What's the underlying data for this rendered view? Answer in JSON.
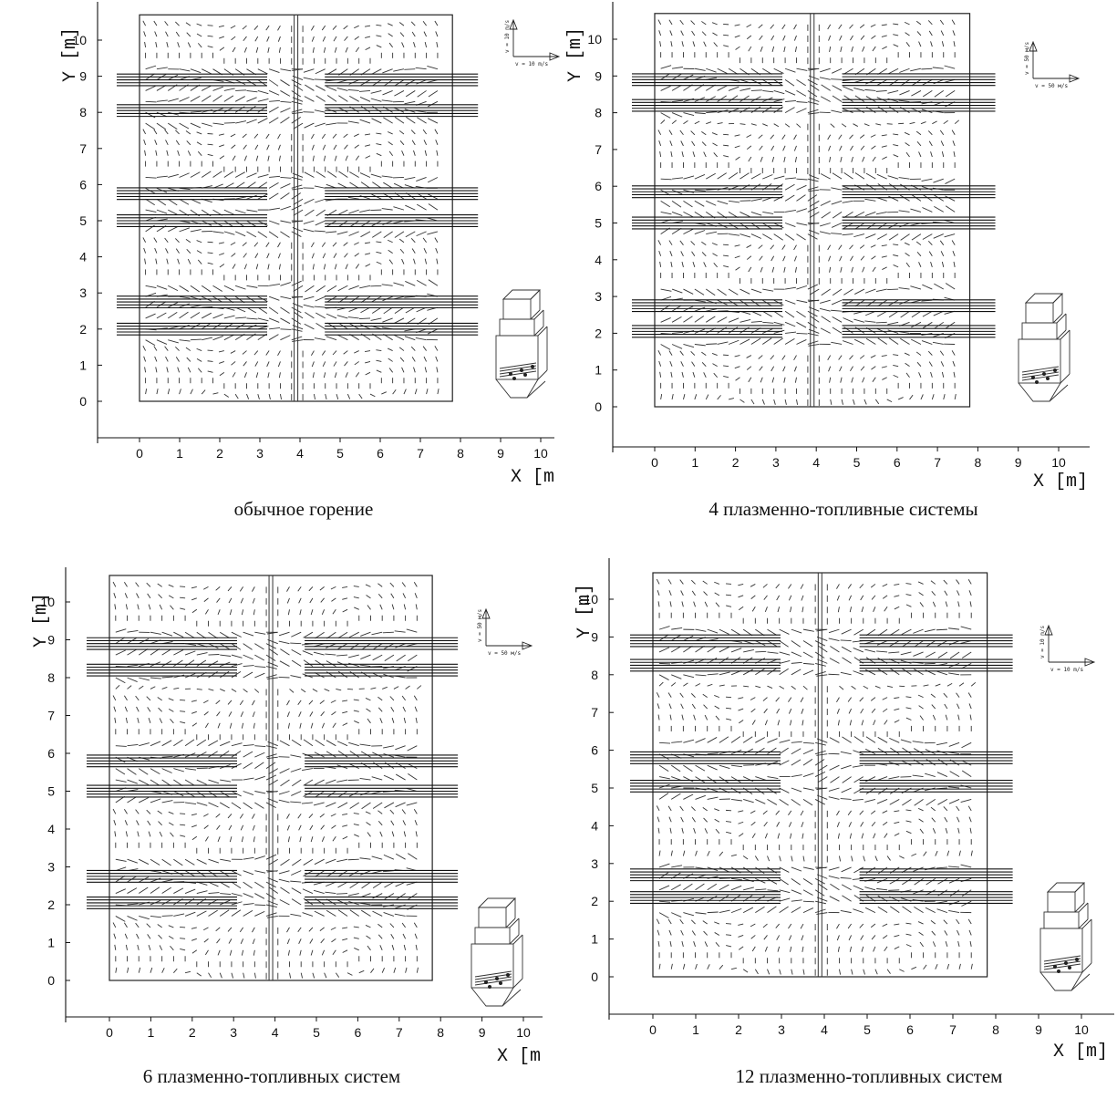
{
  "panels": [
    {
      "caption": "обычное горение",
      "xlabel": "X  [m",
      "ylabel": "Y  [m]",
      "scale_x": "v = 10 m/s",
      "scale_y": "v = 10 m/s",
      "jets_y": [
        2.0,
        2.75,
        5.0,
        5.75,
        8.05,
        8.9
      ]
    },
    {
      "caption": "4 плазменно-топливные системы",
      "xlabel": "X  [m]",
      "ylabel": "Y  [m]",
      "scale_x": "v = 50 м/s",
      "scale_y": "v = 50 м/s",
      "jets_y": [
        2.05,
        2.75,
        5.0,
        5.85,
        8.2,
        8.9
      ]
    },
    {
      "caption": "6 плазменно-топливных систем",
      "xlabel": "X  [m",
      "ylabel": "Y  [m]",
      "scale_x": "v = 50 м/s",
      "scale_y": "v = 50 м/s",
      "jets_y": [
        2.05,
        2.75,
        5.0,
        5.8,
        8.2,
        8.9
      ]
    },
    {
      "caption": "12 плазменно-топливных систем",
      "xlabel": "X  [m]",
      "ylabel": "Y  [m]",
      "scale_x": "v = 10 m/s",
      "scale_y": "v = 10 m/s",
      "jets_y": [
        2.1,
        2.7,
        5.05,
        5.8,
        8.25,
        8.9
      ]
    }
  ],
  "chart_data": [
    {
      "type": "quiver",
      "x_ticks": [
        0,
        1,
        2,
        3,
        4,
        5,
        6,
        7,
        8,
        9,
        10
      ],
      "y_ticks": [
        0,
        1,
        2,
        3,
        4,
        5,
        6,
        7,
        8,
        9,
        10
      ],
      "xlim": [
        -1,
        10.3
      ],
      "ylim": [
        -1,
        10.7
      ],
      "domain_x": [
        0,
        7.8
      ],
      "domain_y": [
        0,
        10.7
      ],
      "jet_levels_y": [
        2.0,
        2.75,
        5.0,
        5.75,
        8.05,
        8.9
      ]
    },
    {
      "type": "quiver",
      "x_ticks": [
        0,
        1,
        2,
        3,
        4,
        5,
        6,
        7,
        8,
        9,
        10
      ],
      "y_ticks": [
        0,
        1,
        2,
        3,
        4,
        5,
        6,
        7,
        8,
        9,
        10
      ],
      "xlim": [
        -1,
        10.3
      ],
      "ylim": [
        -1,
        10.7
      ],
      "domain_x": [
        0,
        7.8
      ],
      "domain_y": [
        0,
        10.7
      ],
      "jet_levels_y": [
        2.05,
        2.75,
        5.0,
        5.85,
        8.2,
        8.9
      ]
    },
    {
      "type": "quiver",
      "x_ticks": [
        0,
        1,
        2,
        3,
        4,
        5,
        6,
        7,
        8,
        9,
        10
      ],
      "y_ticks": [
        0,
        1,
        2,
        3,
        4,
        5,
        6,
        7,
        8,
        9,
        10
      ],
      "xlim": [
        -1,
        10.3
      ],
      "ylim": [
        -1,
        10.7
      ],
      "domain_x": [
        0,
        7.8
      ],
      "domain_y": [
        0,
        10.7
      ],
      "jet_levels_y": [
        2.05,
        2.75,
        5.0,
        5.8,
        8.2,
        8.9
      ]
    },
    {
      "type": "quiver",
      "x_ticks": [
        0,
        1,
        2,
        3,
        4,
        5,
        6,
        7,
        8,
        9,
        10
      ],
      "y_ticks": [
        0,
        1,
        2,
        3,
        4,
        5,
        6,
        7,
        8,
        9,
        10
      ],
      "xlim": [
        -1,
        10.3
      ],
      "ylim": [
        -1,
        10.7
      ],
      "domain_x": [
        0,
        7.8
      ],
      "domain_y": [
        0,
        10.7
      ],
      "jet_levels_y": [
        2.1,
        2.7,
        5.05,
        5.8,
        8.25,
        8.9
      ]
    }
  ]
}
